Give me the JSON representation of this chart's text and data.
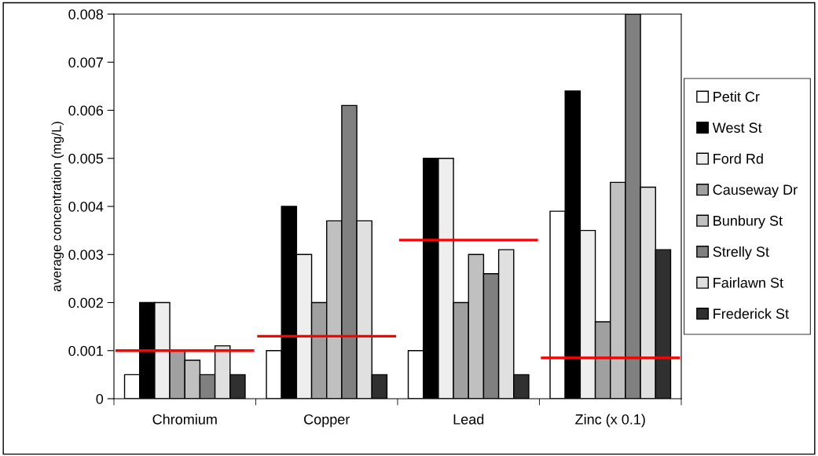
{
  "chart_data": {
    "type": "bar",
    "ylabel": "average concentration (mg/L)",
    "categories": [
      "Chromium",
      "Copper",
      "Lead",
      "Zinc (x 0.1)"
    ],
    "ylim": [
      0,
      0.008
    ],
    "yticks": [
      {
        "value": 0,
        "label": "0"
      },
      0.001,
      0.002,
      0.003,
      0.004,
      0.005,
      0.006,
      0.007,
      0.008
    ],
    "grid": false,
    "legend": "right",
    "series": [
      {
        "name": "Petit Cr",
        "color": "#ffffff",
        "values": [
          0.0005,
          0.001,
          0.001,
          0.0039
        ]
      },
      {
        "name": "West St",
        "color": "#000000",
        "values": [
          0.002,
          0.004,
          0.005,
          0.0064
        ]
      },
      {
        "name": "Ford Rd",
        "color": "#eeeeee",
        "values": [
          0.002,
          0.003,
          0.005,
          0.0035
        ]
      },
      {
        "name": "Causeway Dr",
        "color": "#a0a0a0",
        "values": [
          0.001,
          0.002,
          0.002,
          0.0016
        ]
      },
      {
        "name": "Bunbury St",
        "color": "#c0c0c0",
        "values": [
          0.0008,
          0.0037,
          0.003,
          0.0045
        ]
      },
      {
        "name": "Strelly St",
        "color": "#808080",
        "values": [
          0.0005,
          0.0061,
          0.0026,
          0.008
        ]
      },
      {
        "name": "Fairlawn St",
        "color": "#e0e0e0",
        "values": [
          0.0011,
          0.0037,
          0.0031,
          0.0044
        ]
      },
      {
        "name": "Frederick St",
        "color": "#303030",
        "values": [
          0.0005,
          0.0005,
          0.0005,
          0.0031
        ]
      }
    ],
    "ref_lines": [
      {
        "axis": "y",
        "value": 0.001,
        "color": "#ff0000",
        "line_style": "solid"
      },
      {
        "axis": "y",
        "value": 0.0013,
        "color": "#ff0000",
        "line_style": "solid"
      },
      {
        "axis": "y",
        "value": 0.0033,
        "color": "#ff0000",
        "line_style": "solid"
      },
      {
        "axis": "y",
        "value": 0.00085,
        "color": "#ff0000",
        "line_style": "solid"
      }
    ]
  }
}
